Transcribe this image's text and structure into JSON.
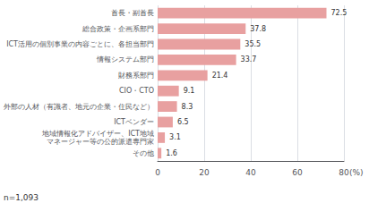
{
  "chart_data": {
    "type": "bar",
    "orientation": "horizontal",
    "categories": [
      "首長・副首長",
      "総合政策・企画系部門",
      "ICT活用の個別事業の内容ごとに、各担当部門",
      "情報システム部門",
      "財務系部門",
      "CIO・CTO",
      "外部の人材（有識者、地元の企業・住民など）",
      "ICTベンダー",
      "地域情報化アドバイザー、ICT地域\nマネージャー等の公的派遣専門家",
      "その他"
    ],
    "values": [
      72.5,
      37.8,
      35.5,
      33.7,
      21.4,
      9.1,
      8.3,
      6.5,
      3.1,
      1.6
    ],
    "color": "#e8a0a0",
    "xlabel": "(%)",
    "xlim": [
      0,
      80
    ],
    "xticks": [
      0,
      20,
      40,
      60,
      80
    ],
    "grid": true,
    "data_labels": true,
    "annotations": [
      "n=1,093"
    ]
  }
}
